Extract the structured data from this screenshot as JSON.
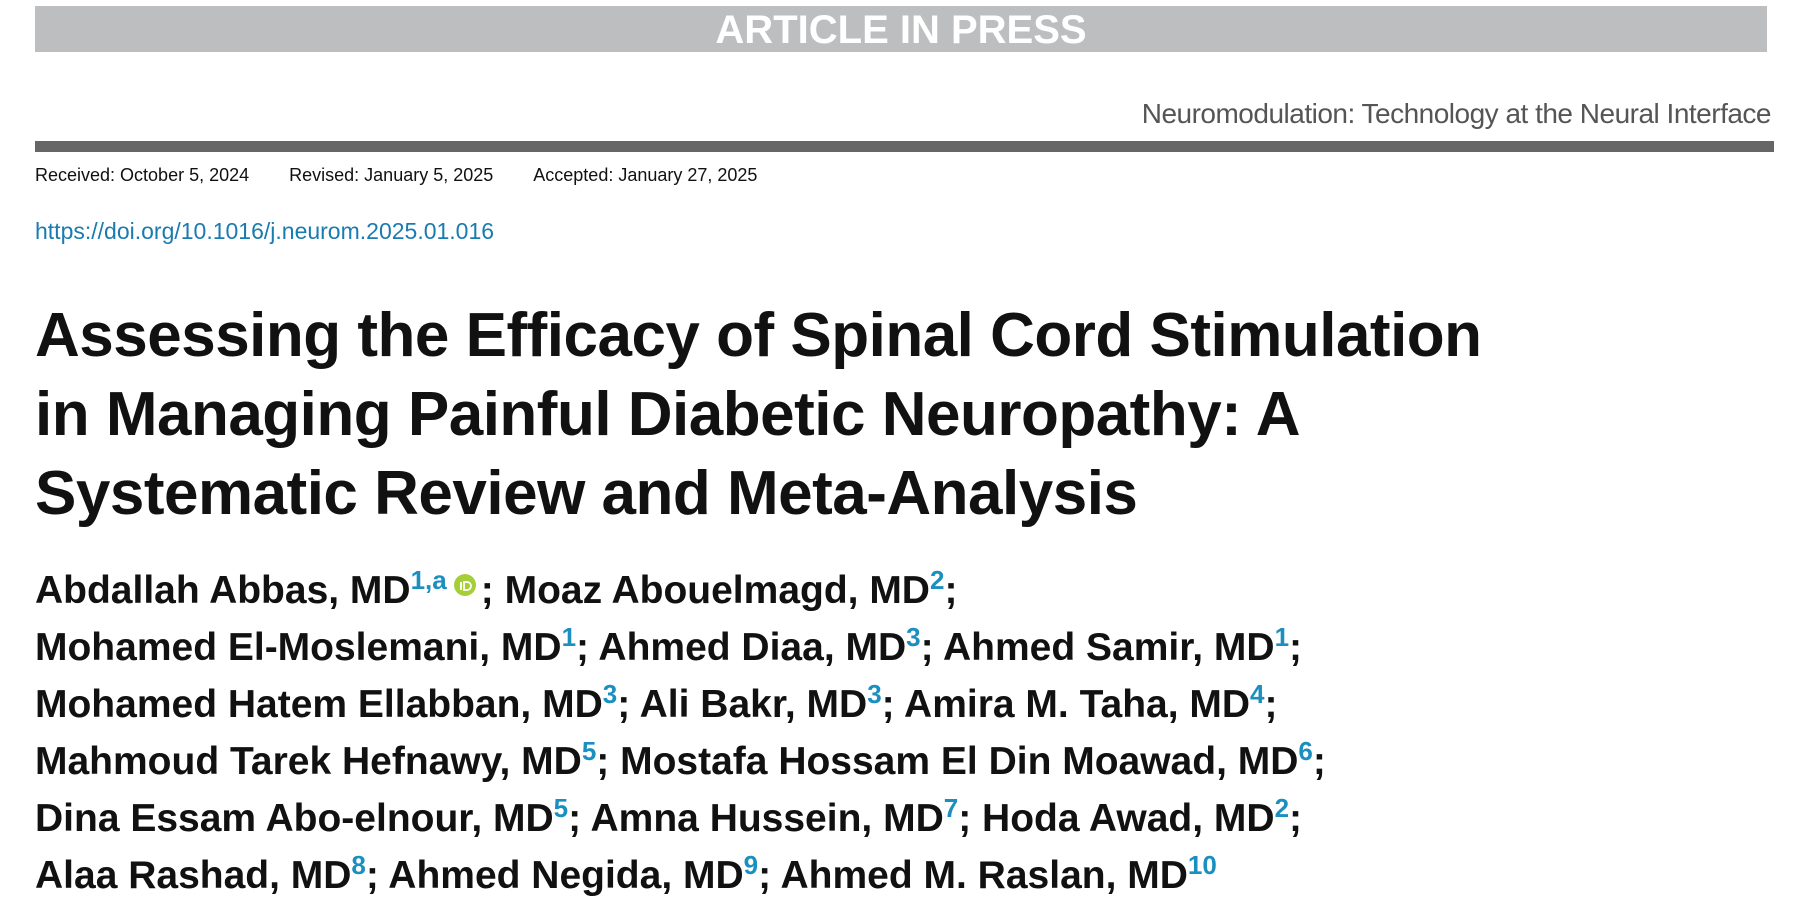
{
  "banner": "ARTICLE IN PRESS",
  "journal": "Neuromodulation: Technology at the Neural Interface",
  "dates": [
    "Received: October 5, 2024",
    "Revised: January 5, 2025",
    "Accepted: January 27, 2025"
  ],
  "doi": "https://doi.org/10.1016/j.neurom.2025.01.016",
  "title": {
    "lines": [
      "Assessing the Efficacy of Spinal Cord Stimulation",
      "in Managing Painful Diabetic Neuropathy: A",
      "Systematic Review and Meta-Analysis"
    ]
  },
  "authors": {
    "separator": ";",
    "lines": [
      [
        {
          "name": "Abdallah Abbas, MD",
          "sup": "1,a",
          "orcid": true
        },
        {
          "name": "Moaz Abouelmagd, MD",
          "sup": "2"
        }
      ],
      [
        {
          "name": "Mohamed El-Moslemani, MD",
          "sup": "1"
        },
        {
          "name": "Ahmed Diaa, MD",
          "sup": "3"
        },
        {
          "name": "Ahmed Samir, MD",
          "sup": "1"
        }
      ],
      [
        {
          "name": "Mohamed Hatem Ellabban, MD",
          "sup": "3"
        },
        {
          "name": "Ali Bakr, MD",
          "sup": "3"
        },
        {
          "name": "Amira M. Taha, MD",
          "sup": "4"
        }
      ],
      [
        {
          "name": "Mahmoud Tarek Hefnawy, MD",
          "sup": "5"
        },
        {
          "name": "Mostafa Hossam El Din Moawad, MD",
          "sup": "6"
        }
      ],
      [
        {
          "name": "Dina Essam Abo-elnour, MD",
          "sup": "5"
        },
        {
          "name": "Amna Hussein, MD",
          "sup": "7"
        },
        {
          "name": "Hoda Awad, MD",
          "sup": "2"
        }
      ],
      [
        {
          "name": "Alaa Rashad, MD",
          "sup": "8"
        },
        {
          "name": "Ahmed Negida, MD",
          "sup": "9"
        },
        {
          "name": "Ahmed M. Raslan, MD",
          "sup": "10"
        }
      ]
    ]
  }
}
